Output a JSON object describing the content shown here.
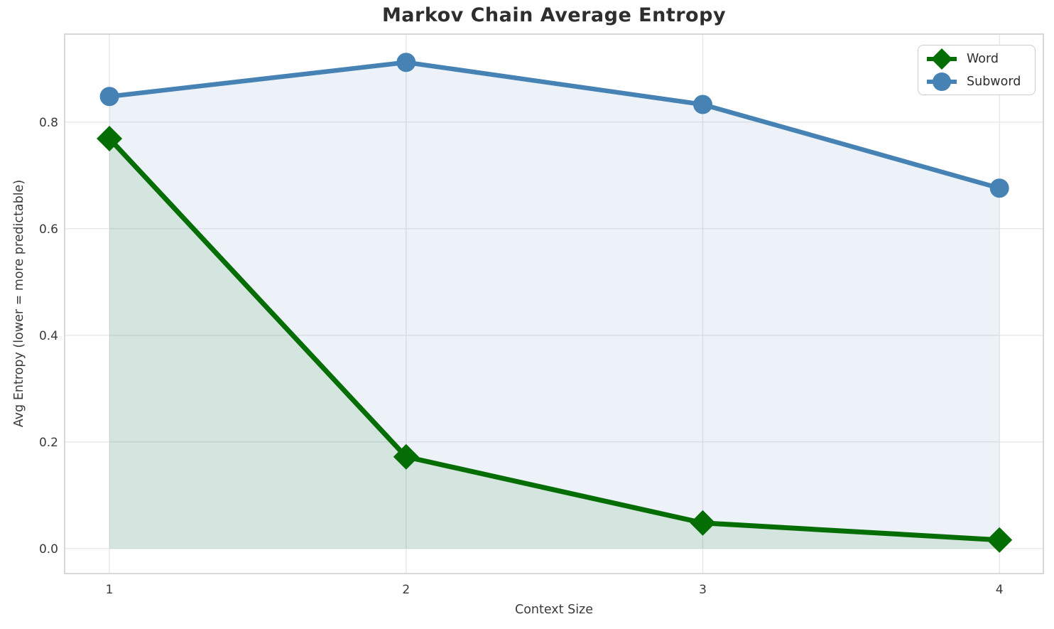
{
  "figure": {
    "background": "#ffffff"
  },
  "chart_data": {
    "type": "line",
    "title": "Markov Chain Average Entropy",
    "xlabel": "Context Size",
    "ylabel": "Avg Entropy (lower = more predictable)",
    "categories": [
      1,
      2,
      3,
      4
    ],
    "x_tick_labels": [
      "1",
      "2",
      "3",
      "4"
    ],
    "y_tick_labels": [
      "0.0",
      "0.2",
      "0.4",
      "0.6",
      "0.8"
    ],
    "y_tick_values": [
      0.0,
      0.2,
      0.4,
      0.6,
      0.8
    ],
    "xlim": [
      0.849,
      4.148
    ],
    "ylim": [
      -0.047,
      0.965
    ],
    "grid": true,
    "series": [
      {
        "name": "Word",
        "color": "#046e04",
        "marker": "diamond",
        "values": [
          0.769,
          0.172,
          0.048,
          0.016
        ],
        "line_width": 7,
        "area_fill": true,
        "fill_alpha": 0.1
      },
      {
        "name": "Subword",
        "color": "#4682b4",
        "marker": "circle",
        "values": [
          0.848,
          0.912,
          0.833,
          0.676
        ],
        "line_width": 6.5,
        "area_fill": true,
        "fill_alpha": 0.1
      }
    ],
    "legend": {
      "position": "upper-right",
      "items": [
        {
          "label": "Word",
          "marker": "diamond",
          "color": "#046e04"
        },
        {
          "label": "Subword",
          "marker": "circle",
          "color": "#4682b4"
        }
      ]
    },
    "colors": {
      "grid": "#e6e6e6",
      "spine": "#cccccc",
      "tick_text": "#3a3a3a",
      "title_text": "#2e2e2e"
    }
  }
}
